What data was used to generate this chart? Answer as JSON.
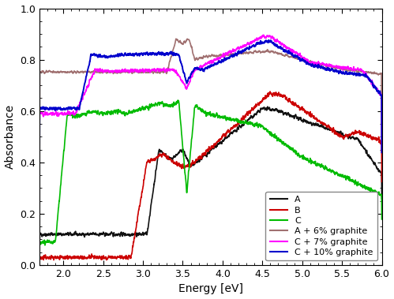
{
  "title": "",
  "xlabel": "Energy [eV]",
  "ylabel": "Absorbance",
  "xlim": [
    1.7,
    6.0
  ],
  "ylim": [
    0.0,
    1.0
  ],
  "xticks": [
    2.0,
    2.5,
    3.0,
    3.5,
    4.0,
    4.5,
    5.0,
    5.5,
    6.0
  ],
  "yticks": [
    0.0,
    0.2,
    0.4,
    0.6,
    0.8,
    1.0
  ],
  "legend_labels": [
    "A",
    "B",
    "C",
    "A + 6% graphite",
    "C + 7% graphite",
    "C + 10% graphite"
  ],
  "line_colors": [
    "#111111",
    "#cc0000",
    "#00bb00",
    "#a07070",
    "#ff00ff",
    "#0000cc"
  ],
  "line_widths": [
    1.2,
    1.2,
    1.2,
    1.2,
    1.2,
    1.4
  ],
  "background_color": "#ffffff",
  "legend_loc": "lower right",
  "figsize": [
    4.99,
    3.79
  ],
  "dpi": 100
}
